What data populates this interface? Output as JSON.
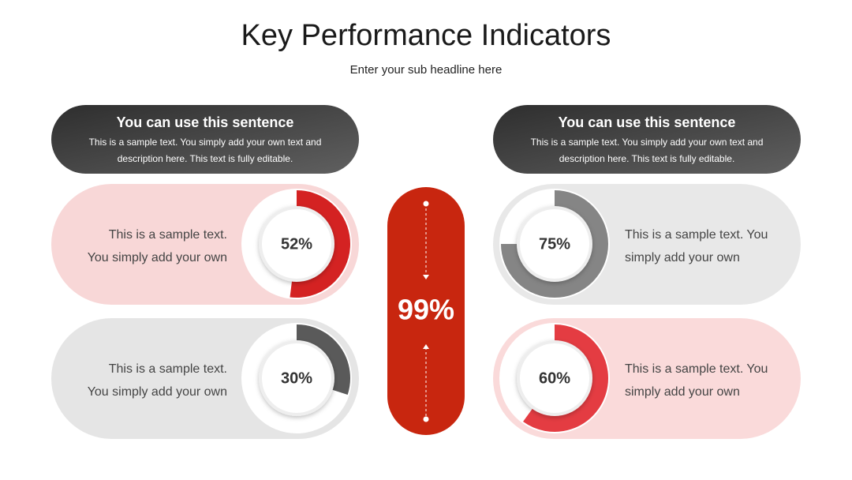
{
  "header": {
    "title": "Key Performance Indicators",
    "subtitle": "Enter your sub headline here"
  },
  "info_boxes": [
    {
      "heading": "You can use this sentence",
      "lines": [
        "This is a sample text. You simply add your own text and",
        "description here. This text is fully editable."
      ]
    },
    {
      "heading": "You can use this sentence",
      "lines": [
        "This is a sample text. You simply add your own text and",
        "description here. This text is fully editable."
      ]
    }
  ],
  "kpis": [
    {
      "value": 52,
      "label": "52%",
      "color": "#d42222",
      "lines": [
        "This is a sample text.",
        "You simply add your own"
      ]
    },
    {
      "value": 30,
      "label": "30%",
      "color": "#5a5a5a",
      "lines": [
        "This is a sample text.",
        "You simply add your own"
      ]
    },
    {
      "value": 75,
      "label": "75%",
      "color": "#858585",
      "lines": [
        "This is a sample text. You",
        "simply add your own"
      ]
    },
    {
      "value": 60,
      "label": "60%",
      "color": "#e43c42",
      "lines": [
        "This is a sample text. You",
        "simply add your own"
      ]
    }
  ],
  "center": {
    "label": "99%"
  }
}
